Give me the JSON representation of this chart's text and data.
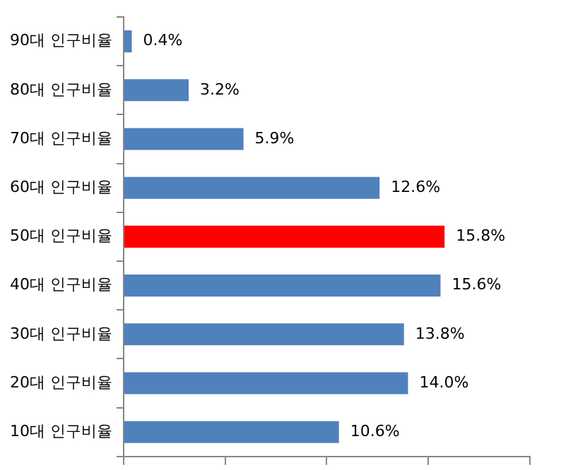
{
  "chart_data": {
    "type": "bar",
    "orientation": "horizontal",
    "categories": [
      "90대 인구비율",
      "80대 인구비율",
      "70대 인구비율",
      "60대 인구비율",
      "50대 인구비율",
      "40대 인구비율",
      "30대 인구비율",
      "20대 인구비율",
      "10대 인구비율"
    ],
    "values": [
      0.4,
      3.2,
      5.9,
      12.6,
      15.8,
      15.6,
      13.8,
      14.0,
      10.6
    ],
    "value_labels": [
      "0.4%",
      "3.2%",
      "5.9%",
      "12.6%",
      "15.8%",
      "15.6%",
      "13.8%",
      "14.0%",
      "10.6%"
    ],
    "colors": [
      "#4f81bd",
      "#4f81bd",
      "#4f81bd",
      "#4f81bd",
      "#ff0000",
      "#4f81bd",
      "#4f81bd",
      "#4f81bd",
      "#4f81bd"
    ],
    "xlim": [
      0,
      20
    ],
    "xticks": [
      {
        "value": 0,
        "label": null
      },
      {
        "value": 5,
        "label": null
      },
      {
        "value": 10,
        "label": null
      },
      {
        "value": 15,
        "label": null
      },
      {
        "value": 20,
        "label": null
      }
    ],
    "tick_labels": "y",
    "grid": false,
    "legend": false
  }
}
